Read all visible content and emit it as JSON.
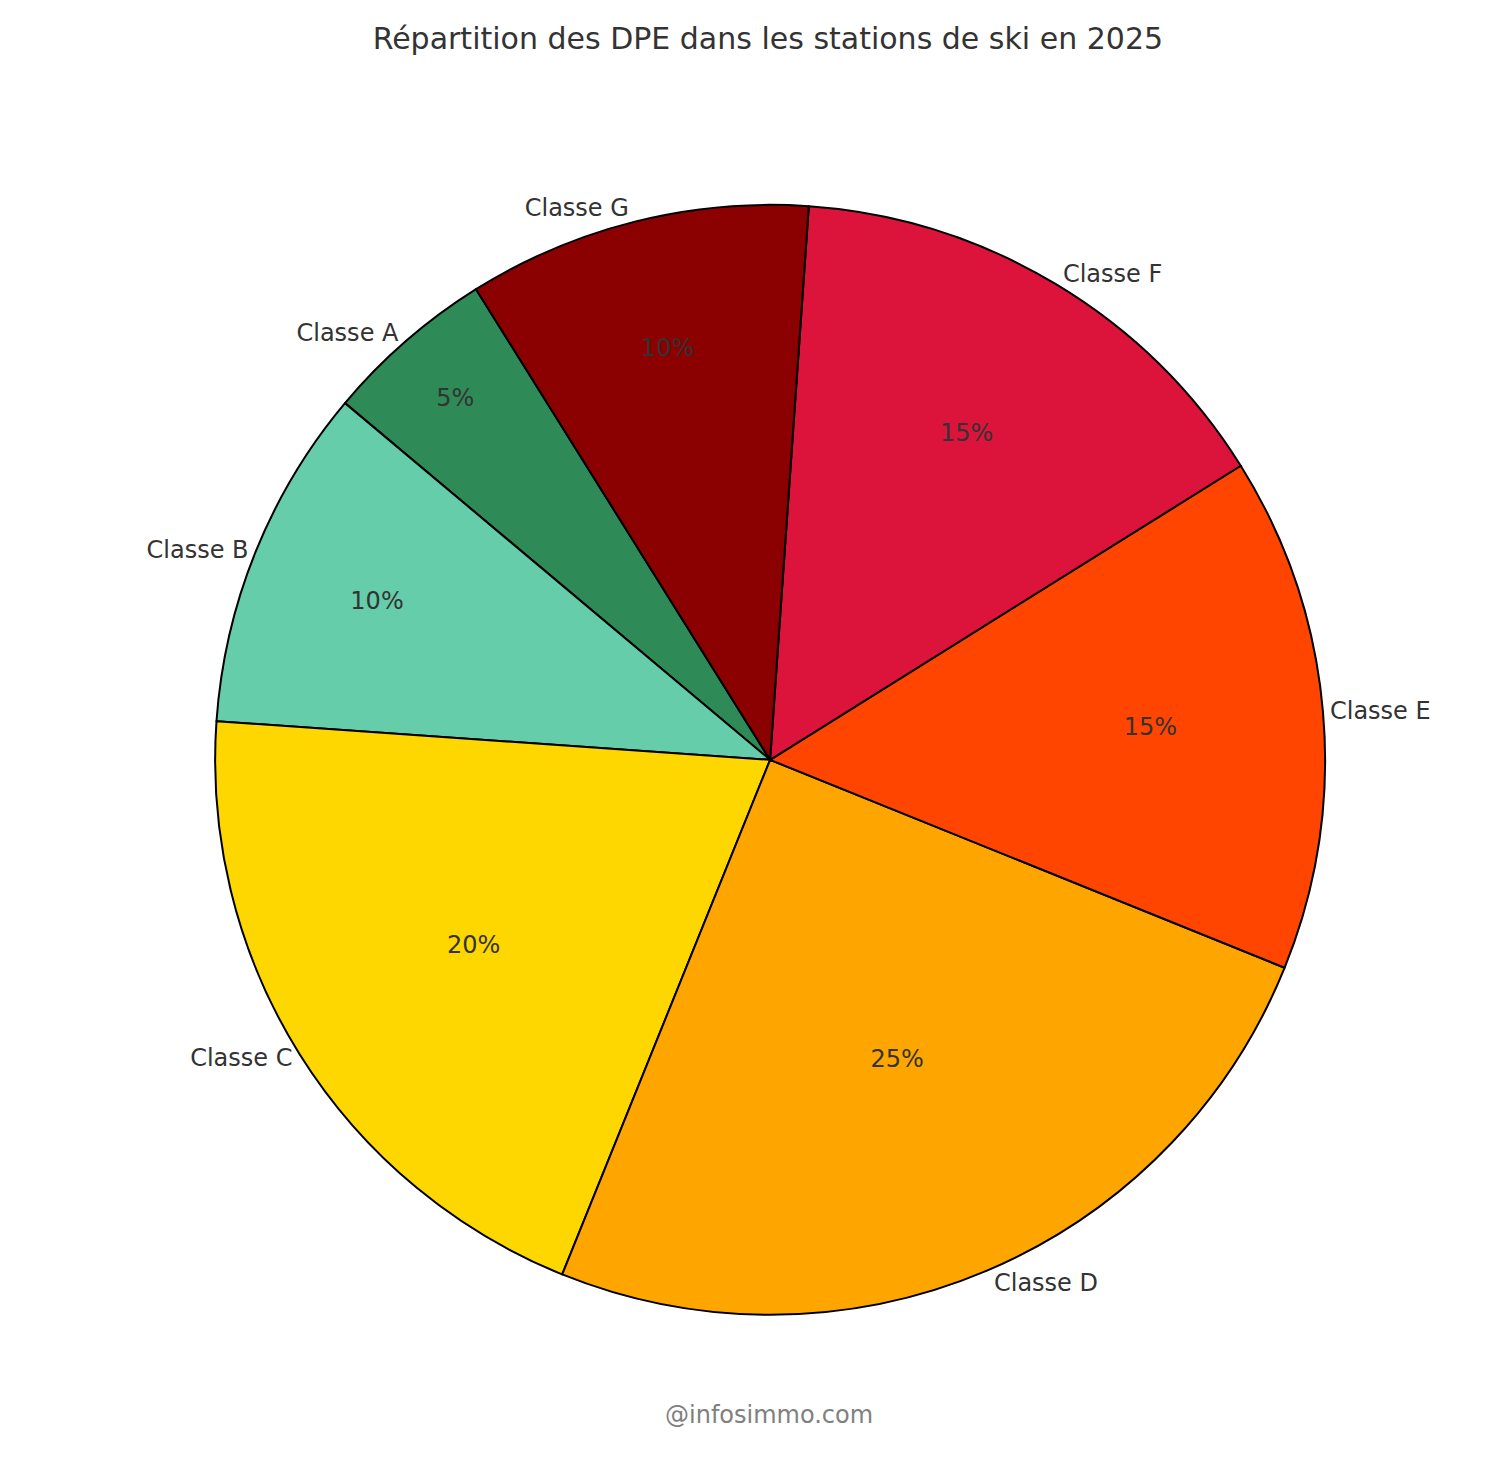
{
  "chart_data": {
    "type": "pie",
    "title": "Répartition des DPE dans les stations de ski en 2025",
    "categories": [
      "Classe A",
      "Classe B",
      "Classe C",
      "Classe D",
      "Classe E",
      "Classe F",
      "Classe G"
    ],
    "values": [
      5,
      10,
      20,
      25,
      15,
      15,
      10
    ],
    "value_labels": [
      "5%",
      "10%",
      "20%",
      "25%",
      "15%",
      "15%",
      "10%"
    ],
    "colors": [
      "#2e8b57",
      "#66cdaa",
      "#ffd700",
      "#ffa500",
      "#ff4500",
      "#dc143c",
      "#8b0000"
    ],
    "data_labels": true,
    "annotation": "@infosimmo.com"
  }
}
